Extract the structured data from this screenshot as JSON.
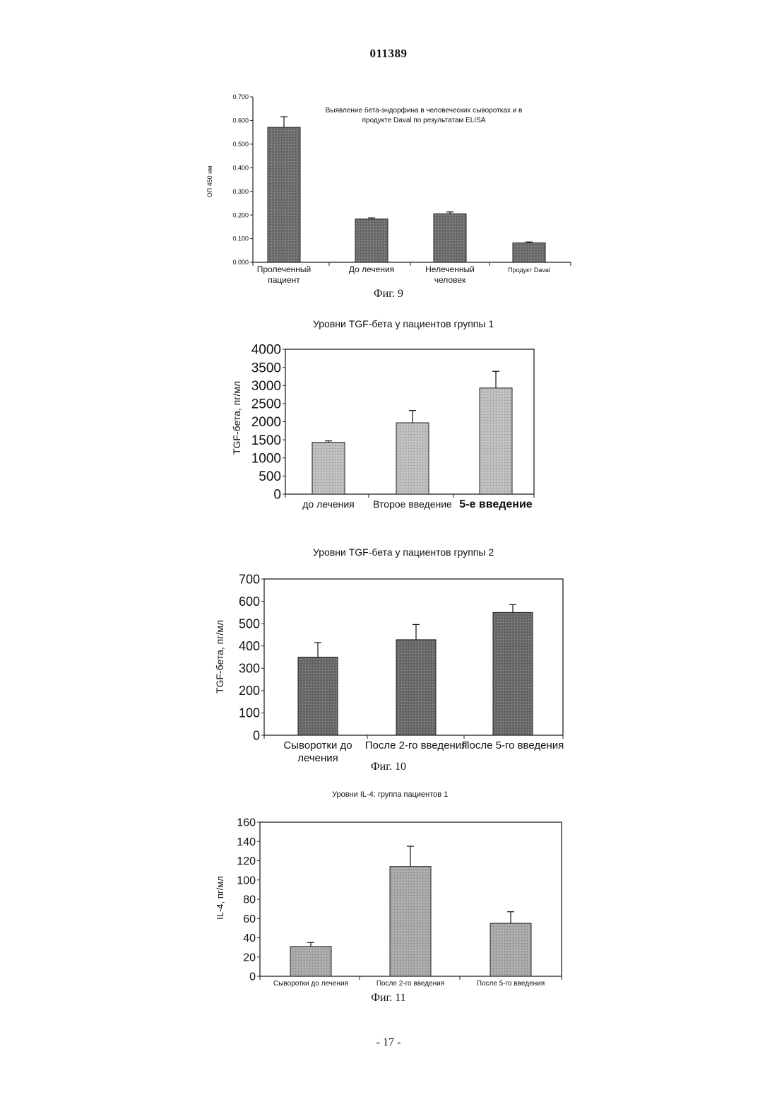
{
  "doc_number": "011389",
  "page_number": "- 17 -",
  "captions": {
    "fig9": "Фиг. 9",
    "fig10": "Фиг. 10",
    "fig11": "Фиг. 11"
  },
  "titles": {
    "fig9_title_line1": "Выявление бета-эндорфина в человеческих сыворотках и в",
    "fig9_title_line2": "продукте Daval по результатам ELISA",
    "chart2_title": "Уровни TGF-бета у пациентов группы 1",
    "chart3_title": "Уровни TGF-бета у пациентов группы  2",
    "chart4_title": "Уровни IL-4: группа  пациентов 1"
  },
  "chart_data": [
    {
      "type": "bar",
      "title": "Выявление бета-эндорфина в человеческих сыворотках и в продукте Daval по результатам ELISA",
      "ylabel": "ОП 450 нм",
      "xlabel": "",
      "categories": [
        [
          "Пролеченный",
          "пациент"
        ],
        [
          "До лечения"
        ],
        [
          "Нелеченный",
          "человек"
        ],
        [
          "Продукт Daval"
        ]
      ],
      "values": [
        0.571,
        0.183,
        0.205,
        0.082
      ],
      "errors": [
        0.045,
        0.005,
        0.008,
        0.004
      ],
      "ylim": [
        0,
        0.7
      ],
      "yticks": [
        "0.000",
        "0.100",
        "0.200",
        "0.300",
        "0.400",
        "0.500",
        "0.600",
        "0.700"
      ],
      "bar_color": "#6e6e6e",
      "grid": false
    },
    {
      "type": "bar",
      "title": "Уровни TGF-бета у пациентов группы 1",
      "ylabel": "TGF-бета, пг/мл",
      "xlabel": "",
      "categories": [
        [
          "до лечения"
        ],
        [
          "Второе введение"
        ],
        [
          "5-е введение"
        ]
      ],
      "values": [
        1430,
        1970,
        2930
      ],
      "errors": [
        40,
        340,
        460
      ],
      "ylim": [
        0,
        4000
      ],
      "yticks": [
        "0",
        "500",
        "1000",
        "1500",
        "2000",
        "2500",
        "3000",
        "3500",
        "4000"
      ],
      "bar_color": "#bdbdbd",
      "grid": false
    },
    {
      "type": "bar",
      "title": "Уровни TGF-бета у пациентов группы  2",
      "ylabel": "TGF-бета,  пг/мл",
      "xlabel": "",
      "categories": [
        [
          "Сыворотки до",
          "лечения"
        ],
        [
          "После 2-го введения"
        ],
        [
          "После 5-го введения"
        ]
      ],
      "values": [
        350,
        428,
        550
      ],
      "errors": [
        65,
        68,
        35
      ],
      "ylim": [
        0,
        700
      ],
      "yticks": [
        "0",
        "100",
        "200",
        "300",
        "400",
        "500",
        "600",
        "700"
      ],
      "bar_color": "#6a6a6a",
      "grid": false
    },
    {
      "type": "bar",
      "title": "Уровни IL-4: группа  пациентов 1",
      "ylabel": "IL-4,  пг/мл",
      "xlabel": "",
      "categories": [
        [
          "Сыворотки до лечения"
        ],
        [
          "После 2-го введения"
        ],
        [
          "После 5-го введения"
        ]
      ],
      "values": [
        31,
        114,
        55
      ],
      "errors": [
        4,
        21,
        12
      ],
      "ylim": [
        0,
        160
      ],
      "yticks": [
        "0",
        "20",
        "40",
        "60",
        "80",
        "100",
        "120",
        "140",
        "160"
      ],
      "bar_color": "#a8a8a8",
      "grid": false
    }
  ]
}
